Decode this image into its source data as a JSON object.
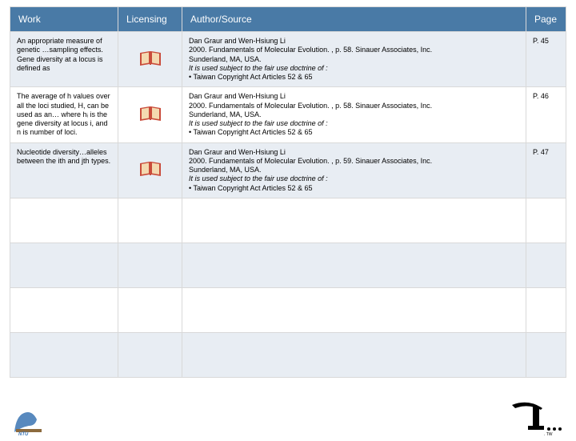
{
  "table": {
    "header": {
      "work": "Work",
      "licensing": "Licensing",
      "author": "Author/Source",
      "page": "Page"
    },
    "rows": [
      {
        "work": "An appropriate measure of genetic …sampling effects. Gene diversity at a locus is defined as",
        "author_line1": "Dan Graur and Wen-Hsiung Li",
        "author_line2": "2000. Fundamentals of Molecular Evolution. , p. 58. Sinauer Associates, Inc.",
        "author_line3": "Sunderland, MA, USA.",
        "author_line4": "It is used subject to the fair use doctrine of :",
        "author_line5": "• Taiwan Copyright Act Articles 52 & 65",
        "page": "P. 45"
      },
      {
        "work": "The average of h values over all the loci studied, H, can be used as an… where hᵢ is the gene diversity at locus i, and n is number of loci.",
        "author_line1": "Dan Graur and Wen-Hsiung Li",
        "author_line2": "2000. Fundamentals of Molecular Evolution. , p. 58. Sinauer Associates, Inc.",
        "author_line3": "Sunderland, MA, USA.",
        "author_line4": "It is used subject to the fair use doctrine of :",
        "author_line5": "• Taiwan Copyright Act Articles 52 & 65",
        "page": "P. 46"
      },
      {
        "work": "Nucleotide diversity…alleles between the ith and jth types.",
        "author_line1": "Dan Graur and Wen-Hsiung Li",
        "author_line2": "2000. Fundamentals of Molecular Evolution. , p. 59. Sinauer Associates, Inc.",
        "author_line3": "Sunderland, MA, USA.",
        "author_line4": "It is used subject to the fair use doctrine of :",
        "author_line5": "• Taiwan Copyright Act Articles 52 & 65",
        "page": "P. 47"
      }
    ],
    "empty_rows": 4,
    "colors": {
      "header_bg": "#497aa6",
      "header_fg": "#ffffff",
      "stripe_bg": "#e8edf3",
      "plain_bg": "#ffffff",
      "border": "#d9d9d9",
      "text": "#000000"
    },
    "icon": {
      "name": "book-icon",
      "fill": "#c94b3a",
      "inner": "#f4d9b0"
    }
  },
  "logos": {
    "left": {
      "name": "ntu-logo",
      "color1": "#3b74b3",
      "color2": "#8c6a3e"
    },
    "right": {
      "name": "tw-logo",
      "color": "#000000"
    }
  }
}
